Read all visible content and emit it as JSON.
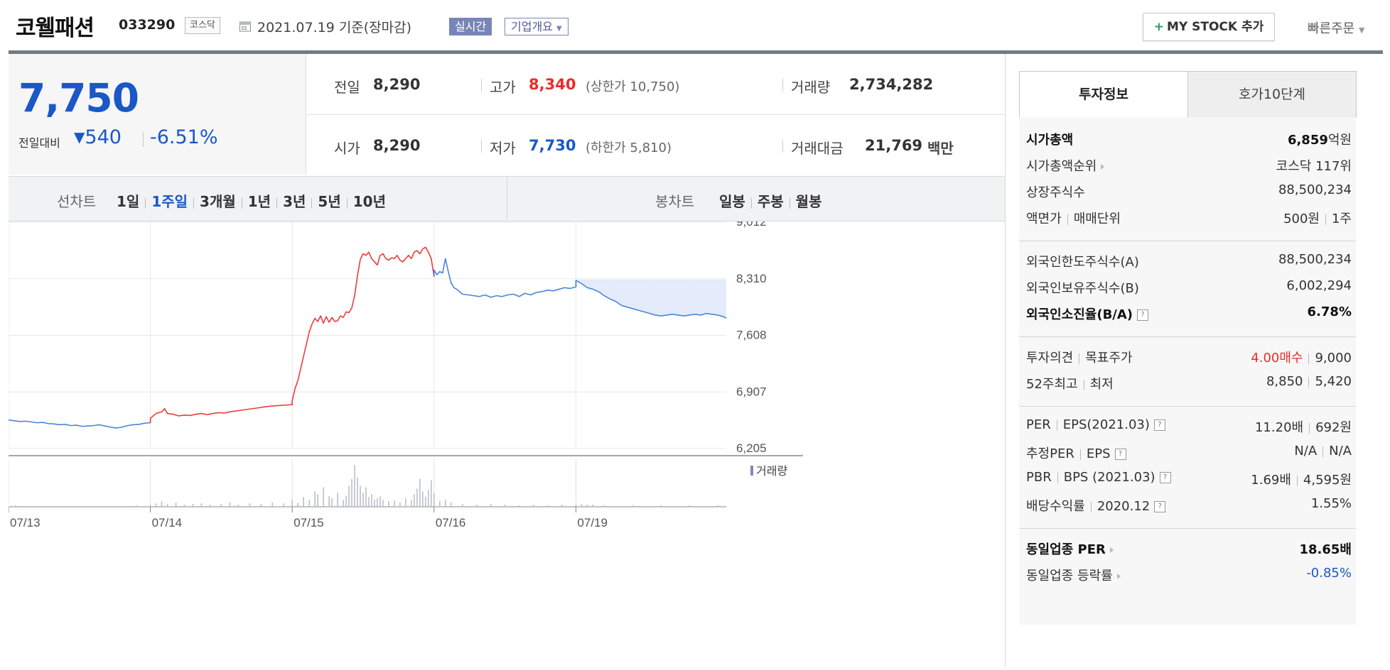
{
  "header": {
    "stock_name": "코웰패션",
    "stock_code": "033290",
    "market_tag": "코스닥",
    "date_text": "2021.07.19  기준(장마감)",
    "realtime_button": "실시간",
    "overview_button": "기업개요",
    "mystock_button": "MY STOCK 추가",
    "quick_order": "빠른주문"
  },
  "quote": {
    "price": "7,750",
    "compare_label": "전일대비",
    "change": "540",
    "change_pct": "-6.51%",
    "prev_label": "전일",
    "prev_value": "8,290",
    "open_label": "시가",
    "open_value": "8,290",
    "high_label": "고가",
    "high_value": "8,340",
    "upper_limit": "(상한가 10,750)",
    "low_label": "저가",
    "low_value": "7,730",
    "lower_limit": "(하한가 5,810)",
    "volume_label": "거래량",
    "volume_value": "2,734,282",
    "amount_label": "거래대금",
    "amount_value": "21,769",
    "amount_unit": "백만"
  },
  "tabs": {
    "line_chart_label": "선차트",
    "line_periods": [
      "1일",
      "1주일",
      "3개월",
      "1년",
      "3년",
      "5년",
      "10년"
    ],
    "active_period": "1주일",
    "candle_chart_label": "봉차트",
    "candle_periods": [
      "일봉",
      "주봉",
      "월봉"
    ]
  },
  "colors": {
    "up": "#ee3b3b",
    "down": "#4a86d6",
    "accent": "#1a57c7"
  },
  "chart_data": {
    "type": "line",
    "series": [],
    "x_ticks": [
      "07/13",
      "07/14",
      "07/15",
      "07/16",
      "07/19"
    ],
    "y_ticks": [
      "9,012",
      "8,310",
      "7,608",
      "6,907",
      "6,205"
    ],
    "ylim": [
      6205,
      9012
    ],
    "reference_price": 8290,
    "volume_legend": "거래량",
    "grid": true,
    "points": [
      [
        0,
        6560
      ],
      [
        4,
        6550
      ],
      [
        8,
        6540
      ],
      [
        12,
        6545
      ],
      [
        16,
        6535
      ],
      [
        20,
        6525
      ],
      [
        24,
        6530
      ],
      [
        28,
        6515
      ],
      [
        32,
        6510
      ],
      [
        36,
        6500
      ],
      [
        40,
        6505
      ],
      [
        44,
        6490
      ],
      [
        48,
        6495
      ],
      [
        52,
        6480
      ],
      [
        56,
        6485
      ],
      [
        60,
        6490
      ],
      [
        64,
        6500
      ],
      [
        68,
        6485
      ],
      [
        72,
        6470
      ],
      [
        76,
        6460
      ],
      [
        80,
        6470
      ],
      [
        84,
        6490
      ],
      [
        88,
        6500
      ],
      [
        92,
        6505
      ],
      [
        96,
        6520
      ],
      [
        100,
        6525
      ],
      [
        100,
        6580
      ],
      [
        104,
        6640
      ],
      [
        108,
        6660
      ],
      [
        110,
        6700
      ],
      [
        112,
        6640
      ],
      [
        116,
        6630
      ],
      [
        120,
        6610
      ],
      [
        124,
        6620
      ],
      [
        128,
        6615
      ],
      [
        132,
        6630
      ],
      [
        136,
        6640
      ],
      [
        140,
        6625
      ],
      [
        144,
        6640
      ],
      [
        148,
        6650
      ],
      [
        152,
        6645
      ],
      [
        156,
        6660
      ],
      [
        160,
        6670
      ],
      [
        164,
        6680
      ],
      [
        168,
        6690
      ],
      [
        172,
        6700
      ],
      [
        176,
        6710
      ],
      [
        180,
        6720
      ],
      [
        184,
        6730
      ],
      [
        188,
        6735
      ],
      [
        192,
        6740
      ],
      [
        196,
        6745
      ],
      [
        200,
        6750
      ],
      [
        200,
        6800
      ],
      [
        202,
        6950
      ],
      [
        204,
        7050
      ],
      [
        206,
        7200
      ],
      [
        208,
        7350
      ],
      [
        210,
        7500
      ],
      [
        212,
        7650
      ],
      [
        214,
        7750
      ],
      [
        216,
        7820
      ],
      [
        218,
        7780
      ],
      [
        220,
        7850
      ],
      [
        222,
        7760
      ],
      [
        224,
        7840
      ],
      [
        226,
        7770
      ],
      [
        228,
        7830
      ],
      [
        230,
        7780
      ],
      [
        232,
        7790
      ],
      [
        234,
        7850
      ],
      [
        236,
        7830
      ],
      [
        238,
        7900
      ],
      [
        240,
        7890
      ],
      [
        242,
        7950
      ],
      [
        244,
        8100
      ],
      [
        246,
        8350
      ],
      [
        248,
        8550
      ],
      [
        250,
        8620
      ],
      [
        252,
        8600
      ],
      [
        254,
        8640
      ],
      [
        256,
        8560
      ],
      [
        258,
        8520
      ],
      [
        260,
        8480
      ],
      [
        262,
        8600
      ],
      [
        264,
        8620
      ],
      [
        266,
        8560
      ],
      [
        268,
        8540
      ],
      [
        270,
        8570
      ],
      [
        272,
        8560
      ],
      [
        274,
        8600
      ],
      [
        276,
        8540
      ],
      [
        278,
        8520
      ],
      [
        280,
        8560
      ],
      [
        282,
        8600
      ],
      [
        284,
        8560
      ],
      [
        286,
        8640
      ],
      [
        288,
        8660
      ],
      [
        290,
        8620
      ],
      [
        292,
        8680
      ],
      [
        294,
        8700
      ],
      [
        296,
        8640
      ],
      [
        298,
        8560
      ],
      [
        300,
        8340
      ],
      [
        300,
        8420
      ],
      [
        302,
        8360
      ],
      [
        304,
        8400
      ],
      [
        306,
        8380
      ],
      [
        308,
        8560
      ],
      [
        310,
        8400
      ],
      [
        312,
        8260
      ],
      [
        314,
        8200
      ],
      [
        316,
        8180
      ],
      [
        318,
        8150
      ],
      [
        320,
        8120
      ],
      [
        324,
        8110
      ],
      [
        328,
        8100
      ],
      [
        332,
        8090
      ],
      [
        336,
        8110
      ],
      [
        340,
        8080
      ],
      [
        344,
        8100
      ],
      [
        348,
        8090
      ],
      [
        352,
        8110
      ],
      [
        356,
        8120
      ],
      [
        360,
        8090
      ],
      [
        364,
        8130
      ],
      [
        368,
        8110
      ],
      [
        372,
        8140
      ],
      [
        376,
        8150
      ],
      [
        380,
        8170
      ],
      [
        384,
        8160
      ],
      [
        388,
        8180
      ],
      [
        392,
        8200
      ],
      [
        396,
        8190
      ],
      [
        400,
        8210
      ],
      [
        400,
        8290
      ],
      [
        404,
        8250
      ],
      [
        408,
        8200
      ],
      [
        412,
        8180
      ],
      [
        416,
        8150
      ],
      [
        420,
        8100
      ],
      [
        424,
        8060
      ],
      [
        428,
        8030
      ],
      [
        432,
        7980
      ],
      [
        436,
        7960
      ],
      [
        440,
        7940
      ],
      [
        444,
        7920
      ],
      [
        448,
        7900
      ],
      [
        452,
        7880
      ],
      [
        456,
        7860
      ],
      [
        460,
        7850
      ],
      [
        464,
        7860
      ],
      [
        468,
        7870
      ],
      [
        472,
        7860
      ],
      [
        476,
        7850
      ],
      [
        480,
        7860
      ],
      [
        484,
        7870
      ],
      [
        488,
        7860
      ],
      [
        492,
        7880
      ],
      [
        496,
        7870
      ],
      [
        500,
        7860
      ],
      [
        504,
        7840
      ],
      [
        506,
        7820
      ]
    ],
    "volumes": [
      [
        5,
        2
      ],
      [
        15,
        1
      ],
      [
        40,
        1
      ],
      [
        60,
        1
      ],
      [
        90,
        2
      ],
      [
        100,
        3
      ],
      [
        104,
        5
      ],
      [
        108,
        8
      ],
      [
        112,
        4
      ],
      [
        118,
        6
      ],
      [
        124,
        3
      ],
      [
        130,
        4
      ],
      [
        136,
        5
      ],
      [
        142,
        3
      ],
      [
        150,
        4
      ],
      [
        156,
        6
      ],
      [
        162,
        3
      ],
      [
        170,
        5
      ],
      [
        178,
        4
      ],
      [
        186,
        6
      ],
      [
        194,
        5
      ],
      [
        200,
        10
      ],
      [
        204,
        6
      ],
      [
        208,
        14
      ],
      [
        212,
        10
      ],
      [
        216,
        22
      ],
      [
        218,
        18
      ],
      [
        222,
        28
      ],
      [
        226,
        15
      ],
      [
        228,
        12
      ],
      [
        232,
        20
      ],
      [
        236,
        10
      ],
      [
        238,
        16
      ],
      [
        240,
        30
      ],
      [
        242,
        40
      ],
      [
        244,
        60
      ],
      [
        246,
        42
      ],
      [
        248,
        30
      ],
      [
        250,
        20
      ],
      [
        252,
        28
      ],
      [
        254,
        14
      ],
      [
        256,
        18
      ],
      [
        258,
        10
      ],
      [
        260,
        12
      ],
      [
        262,
        15
      ],
      [
        264,
        10
      ],
      [
        268,
        8
      ],
      [
        272,
        9
      ],
      [
        276,
        6
      ],
      [
        280,
        12
      ],
      [
        284,
        10
      ],
      [
        286,
        18
      ],
      [
        288,
        26
      ],
      [
        290,
        40
      ],
      [
        292,
        22
      ],
      [
        294,
        14
      ],
      [
        296,
        24
      ],
      [
        298,
        38
      ],
      [
        300,
        20
      ],
      [
        304,
        8
      ],
      [
        308,
        10
      ],
      [
        312,
        6
      ],
      [
        320,
        4
      ],
      [
        330,
        3
      ],
      [
        340,
        4
      ],
      [
        350,
        3
      ],
      [
        360,
        2
      ],
      [
        370,
        3
      ],
      [
        380,
        2
      ],
      [
        390,
        3
      ],
      [
        400,
        3
      ],
      [
        404,
        4
      ],
      [
        408,
        3
      ],
      [
        412,
        3
      ],
      [
        420,
        2
      ],
      [
        440,
        2
      ],
      [
        460,
        2
      ],
      [
        480,
        2
      ],
      [
        500,
        2
      ],
      [
        505,
        1
      ]
    ]
  },
  "invest": {
    "tab_active": "투자정보",
    "tab_other": "호가10단계",
    "rows_group1": [
      {
        "label": "시가총액",
        "value": "6,859",
        "unit": "억원",
        "bold": true
      },
      {
        "label": "시가총액순위",
        "value": "코스닥 117위",
        "arrow": true
      },
      {
        "label": "상장주식수",
        "value": "88,500,234"
      },
      {
        "label": "액면가",
        "label2": "매매단위",
        "value": "500원",
        "value2": "1주"
      }
    ],
    "rows_group2": [
      {
        "label": "외국인한도주식수(A)",
        "value": "88,500,234"
      },
      {
        "label": "외국인보유주식수(B)",
        "value": "6,002,294"
      },
      {
        "label": "외국인소진율(B/A)",
        "value": "6.78%",
        "bold": true,
        "help": true
      }
    ],
    "rows_group3": [
      {
        "label": "투자의견",
        "label2": "목표주가",
        "value": "4.00매수",
        "value2": "9,000"
      },
      {
        "label": "52주최고",
        "label2": "최저",
        "value": "8,850",
        "value2": "5,420"
      }
    ],
    "rows_group4": [
      {
        "label": "PER",
        "label2": "EPS(2021.03)",
        "value": "11.20배",
        "value2": "692원"
      },
      {
        "label": "추정PER",
        "label2": "EPS",
        "value": "N/A",
        "value2": "N/A"
      },
      {
        "label": "PBR",
        "label2": "BPS (2021.03)",
        "value": "1.69배",
        "value2": "4,595원"
      },
      {
        "label": "배당수익률",
        "label2": "2020.12",
        "value": "1.55%"
      }
    ],
    "rows_group5": [
      {
        "label": "동일업종 PER",
        "value": "18.65배",
        "bold": true
      },
      {
        "label": "동일업종 등락률",
        "value": "-0.85%"
      }
    ]
  }
}
